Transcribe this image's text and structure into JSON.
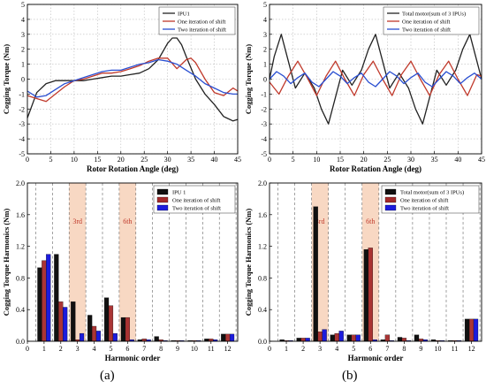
{
  "captions": {
    "a": "(a)",
    "b": "(b)"
  },
  "chart_data": [
    {
      "type": "line",
      "panel": "top-left",
      "xlabel": "Rotor Rotation Angle (deg)",
      "ylabel": "Cogging Torque (Nm)",
      "xlim": [
        0,
        45
      ],
      "ylim": [
        -5,
        5
      ],
      "xticks": [
        0,
        5,
        10,
        15,
        20,
        25,
        30,
        35,
        40,
        45
      ],
      "yticks": [
        -5,
        -4,
        -3,
        -2,
        -1,
        0,
        1,
        2,
        3,
        4,
        5
      ],
      "legend_position": "top-right",
      "series": [
        {
          "name": "IPU1",
          "color": "#222222",
          "x": [
            0,
            2,
            4,
            6,
            8,
            10,
            12,
            14,
            16,
            18,
            20,
            22,
            24,
            26,
            28,
            30,
            31,
            32,
            33,
            34,
            36,
            38,
            40,
            42,
            44,
            45
          ],
          "y": [
            -2.6,
            -0.9,
            -0.3,
            -0.1,
            -0.1,
            -0.1,
            -0.1,
            0.0,
            0.1,
            0.2,
            0.2,
            0.3,
            0.4,
            0.7,
            1.3,
            2.4,
            2.75,
            2.75,
            2.3,
            1.5,
            0.0,
            -1.0,
            -1.7,
            -2.5,
            -2.8,
            -2.7
          ]
        },
        {
          "name": "One iteration of shift",
          "color": "#c0392b",
          "x": [
            0,
            2,
            4,
            6,
            8,
            10,
            12,
            14,
            16,
            18,
            20,
            22,
            24,
            26,
            28,
            30,
            32,
            34,
            35,
            36,
            38,
            40,
            42,
            44,
            45
          ],
          "y": [
            -1.1,
            -1.3,
            -1.5,
            -1.0,
            -0.5,
            -0.1,
            0.0,
            0.2,
            0.4,
            0.4,
            0.5,
            0.7,
            0.9,
            1.2,
            1.4,
            1.4,
            0.7,
            1.3,
            1.4,
            1.1,
            0.0,
            -0.9,
            -1.1,
            -0.6,
            -0.8
          ]
        },
        {
          "name": "Two iteration of shift",
          "color": "#2a4fd1",
          "x": [
            0,
            2,
            4,
            6,
            8,
            10,
            12,
            14,
            16,
            18,
            20,
            22,
            24,
            26,
            28,
            30,
            32,
            34,
            36,
            38,
            40,
            42,
            44,
            45
          ],
          "y": [
            -0.8,
            -1.2,
            -1.1,
            -0.7,
            -0.3,
            -0.1,
            0.1,
            0.3,
            0.5,
            0.6,
            0.6,
            0.8,
            1.0,
            1.1,
            1.3,
            1.2,
            1.0,
            0.6,
            0.2,
            -0.3,
            -0.6,
            -0.9,
            -1.0,
            -1.0
          ]
        }
      ]
    },
    {
      "type": "line",
      "panel": "top-right",
      "xlabel": "Rotor Rotation Angle (deg)",
      "ylabel": "Cogging Torque (Nm)",
      "xlim": [
        0,
        45
      ],
      "ylim": [
        -5,
        5
      ],
      "xticks": [
        0,
        5,
        10,
        15,
        20,
        25,
        30,
        35,
        40,
        45
      ],
      "yticks": [
        -5,
        -4,
        -3,
        -2,
        -1,
        0,
        1,
        2,
        3,
        4,
        5
      ],
      "legend_position": "top-right",
      "series": [
        {
          "name": "Total motor(sum of 3 IPUs)",
          "color": "#222222",
          "x": [
            0,
            1,
            2.5,
            4,
            5.5,
            7.5,
            9.5,
            11,
            12.5,
            14,
            15.5,
            17.5,
            19.5,
            21,
            22.5,
            24,
            25.5,
            27.5,
            29.5,
            31,
            32.5,
            34,
            35.5,
            37.5,
            39.5,
            41,
            42.5,
            44,
            45
          ],
          "y": [
            0.0,
            1.5,
            3.0,
            1.2,
            -0.6,
            0.4,
            -0.6,
            -2.0,
            -3.0,
            -1.2,
            0.6,
            -0.4,
            0.6,
            2.0,
            3.0,
            1.2,
            -0.6,
            0.4,
            -0.6,
            -2.0,
            -3.0,
            -1.2,
            0.6,
            -0.4,
            0.6,
            2.0,
            3.0,
            1.2,
            0.0
          ]
        },
        {
          "name": "One iteration of shift",
          "color": "#c0392b",
          "x": [
            0,
            2,
            4,
            6,
            8,
            10,
            12,
            14,
            16,
            18,
            20,
            22,
            24,
            26,
            28,
            30,
            32,
            34,
            36,
            38,
            40,
            42,
            44,
            45
          ],
          "y": [
            -0.2,
            -1.0,
            0.2,
            1.2,
            0.1,
            -1.1,
            0.2,
            1.2,
            0.0,
            -1.1,
            0.3,
            1.2,
            0.0,
            -1.1,
            0.3,
            1.2,
            0.0,
            -1.1,
            0.3,
            1.2,
            0.0,
            -1.1,
            0.3,
            0.2
          ]
        },
        {
          "name": "Two iteration of shift",
          "color": "#2a4fd1",
          "x": [
            0,
            1.5,
            3,
            4.5,
            6,
            7.5,
            9,
            10.5,
            12,
            13.5,
            15,
            16.5,
            18,
            19.5,
            21,
            22.5,
            24,
            25.5,
            27,
            28.5,
            30,
            31.5,
            33,
            34.5,
            36,
            37.5,
            39,
            40.5,
            42,
            43.5,
            45
          ],
          "y": [
            0.0,
            0.5,
            0.2,
            -0.3,
            0.1,
            0.4,
            -0.2,
            -0.5,
            0.0,
            0.5,
            0.2,
            -0.3,
            0.1,
            0.4,
            -0.2,
            -0.5,
            0.0,
            0.5,
            0.2,
            -0.3,
            0.1,
            0.4,
            -0.2,
            -0.5,
            0.0,
            0.5,
            0.2,
            -0.3,
            0.1,
            0.4,
            0.0
          ]
        }
      ]
    },
    {
      "type": "bar",
      "panel": "bottom-left",
      "xlabel": "Harmonic order",
      "ylabel": "Cogging Torque Harmonics (Nm)",
      "xlim": [
        0,
        12.6
      ],
      "ylim": [
        0,
        2.0
      ],
      "categories": [
        "1",
        "2",
        "3",
        "4",
        "5",
        "6",
        "7",
        "8",
        "9",
        "10",
        "11",
        "12"
      ],
      "xtick_labels": [
        "0",
        "1",
        "2",
        "3",
        "4",
        "5",
        "6",
        "7",
        "8",
        "9",
        "10",
        "11",
        "12"
      ],
      "yticks": [
        0.0,
        0.4,
        0.8,
        1.2,
        1.6,
        2.0
      ],
      "legend_position": "top-right",
      "highlights": [
        {
          "order": 3,
          "label": "3rd"
        },
        {
          "order": 6,
          "label": "6th"
        }
      ],
      "series": [
        {
          "name": "IPU 1",
          "color": "#111111",
          "values": [
            0.93,
            1.1,
            0.5,
            0.33,
            0.55,
            0.3,
            0.02,
            0.06,
            0.01,
            0.01,
            0.03,
            0.09
          ]
        },
        {
          "name": "One iteration of shift",
          "color": "#a52a2a",
          "values": [
            1.02,
            0.5,
            0.02,
            0.19,
            0.45,
            0.3,
            0.03,
            0.02,
            0.01,
            0.01,
            0.03,
            0.09
          ]
        },
        {
          "name": "Two iteration of shift",
          "color": "#1c1cdd",
          "values": [
            1.1,
            0.43,
            0.1,
            0.13,
            0.1,
            0.02,
            0.02,
            0.01,
            0.01,
            0.01,
            0.02,
            0.09
          ]
        }
      ]
    },
    {
      "type": "bar",
      "panel": "bottom-right",
      "xlabel": "Harmonic order",
      "ylabel": "Cogging Torque Harmonics (Nm)",
      "xlim": [
        0,
        12.6
      ],
      "ylim": [
        0,
        2.0
      ],
      "categories": [
        "1",
        "2",
        "3",
        "4",
        "5",
        "6",
        "7",
        "8",
        "9",
        "10",
        "11",
        "12"
      ],
      "xtick_labels": [
        "0",
        "1",
        "2",
        "3",
        "4",
        "5",
        "6",
        "7",
        "8",
        "9",
        "10",
        "11",
        "12"
      ],
      "yticks": [
        0.0,
        0.4,
        0.8,
        1.2,
        1.6,
        2.0
      ],
      "legend_position": "top-right",
      "highlights": [
        {
          "order": 3,
          "label": "3rd"
        },
        {
          "order": 6,
          "label": "6th"
        }
      ],
      "series": [
        {
          "name": "Total motor(sum of 3 IPUs)",
          "color": "#111111",
          "values": [
            0.02,
            0.04,
            1.7,
            0.08,
            0.08,
            1.16,
            0.02,
            0.05,
            0.08,
            0.02,
            0.01,
            0.28
          ]
        },
        {
          "name": "One iteration of shift",
          "color": "#a52a2a",
          "values": [
            0.01,
            0.04,
            0.12,
            0.1,
            0.08,
            1.18,
            0.08,
            0.04,
            0.03,
            0.01,
            0.01,
            0.28
          ]
        },
        {
          "name": "Two iteration of shift",
          "color": "#1c1cdd",
          "values": [
            0.01,
            0.04,
            0.15,
            0.13,
            0.08,
            0.02,
            0.01,
            0.01,
            0.02,
            0.01,
            0.01,
            0.28
          ]
        }
      ]
    }
  ]
}
